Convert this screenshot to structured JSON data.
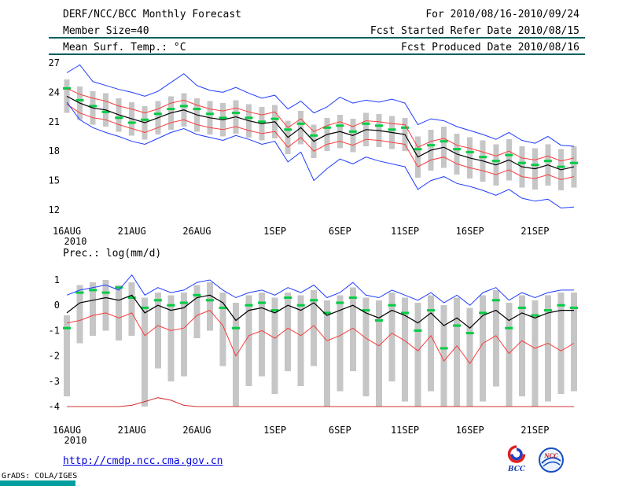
{
  "header": {
    "title": "DERF/NCC/BCC Monthly Forecast",
    "period": "For 2010/08/16-2010/09/24",
    "member_size": "Member Size=40",
    "refer_date": "Fcst Started Refer Date 2010/08/15",
    "variable": "Mean Surf. Temp.: °C",
    "produced_date": "Fcst Produced Date 2010/08/16"
  },
  "footer": {
    "url": "http://cmdp.ncc.cma.gov.cn",
    "grads_credit": "GrADS: COLA/IGES",
    "logo_bcc": "BCC",
    "logo_ncc": "NCC"
  },
  "colors": {
    "rule_teal": "#005f5f",
    "bottom_bar_teal": "#009e9e",
    "ensemble_bar_gray": "#c6c6c6",
    "marker_green": "#00cc44",
    "line_blue": "#1e3cff",
    "line_red": "#fa3c3c",
    "line_dark_red": "#d03030",
    "line_black": "#000000",
    "url_blue": "#0000dd"
  },
  "chart_data": [
    {
      "type": "line",
      "name": "mean-surface-temperature",
      "title": "Mean Surf. Temp.: °C",
      "n_days": 40,
      "year_label": "2010",
      "grid": false,
      "ylim": [
        12,
        27
      ],
      "yticks": [
        27,
        24,
        21,
        18,
        15,
        12
      ],
      "xticks": [
        {
          "day": 0,
          "label": "16AUG"
        },
        {
          "day": 5,
          "label": "21AUG"
        },
        {
          "day": 10,
          "label": "26AUG"
        },
        {
          "day": 16,
          "label": "1SEP"
        },
        {
          "day": 21,
          "label": "6SEP"
        },
        {
          "day": 26,
          "label": "11SEP"
        },
        {
          "day": 31,
          "label": "16SEP"
        },
        {
          "day": 36,
          "label": "21SEP"
        }
      ],
      "bars": {
        "name": "ensemble-spread",
        "color": "#c6c6c6",
        "width": 7,
        "high": [
          25.3,
          24.6,
          24.1,
          23.9,
          23.4,
          23.0,
          22.6,
          23.1,
          23.6,
          23.9,
          23.4,
          23.1,
          22.9,
          23.2,
          22.8,
          22.5,
          22.7,
          21.1,
          22.1,
          20.7,
          21.4,
          21.7,
          21.3,
          21.9,
          21.8,
          21.6,
          21.4,
          19.5,
          20.2,
          20.5,
          19.8,
          19.4,
          19.1,
          18.7,
          19.2,
          18.5,
          18.3,
          18.7,
          18.2,
          18.5
        ],
        "low": [
          21.9,
          21.2,
          20.7,
          20.5,
          20.0,
          19.6,
          19.2,
          19.7,
          20.2,
          20.5,
          20.0,
          19.7,
          19.5,
          19.8,
          19.4,
          19.1,
          19.3,
          17.7,
          18.7,
          17.3,
          18.0,
          18.3,
          17.9,
          18.5,
          18.4,
          18.2,
          18.0,
          15.3,
          16.0,
          16.3,
          15.6,
          15.2,
          14.9,
          14.5,
          15.0,
          14.3,
          14.1,
          14.5,
          14.0,
          14.3
        ]
      },
      "markers": {
        "name": "observation-dash",
        "color": "#00cc44",
        "values": [
          24.4,
          23.2,
          22.6,
          22.0,
          21.4,
          20.9,
          21.2,
          21.8,
          22.3,
          22.6,
          22.3,
          21.8,
          21.4,
          21.9,
          21.4,
          21.0,
          21.3,
          20.2,
          20.8,
          19.6,
          20.4,
          20.6,
          20.0,
          20.8,
          20.6,
          20.2,
          20.4,
          18.2,
          18.6,
          19.0,
          18.2,
          17.9,
          17.4,
          17.0,
          17.6,
          16.8,
          16.6,
          17.0,
          16.4,
          16.8
        ]
      },
      "series": [
        {
          "name": "ensemble-max",
          "color": "#1e3cff",
          "width": 1,
          "values": [
            26.0,
            26.8,
            25.1,
            24.7,
            24.3,
            24.0,
            23.6,
            24.1,
            25.0,
            25.9,
            24.7,
            24.2,
            24.0,
            24.5,
            23.9,
            23.4,
            23.7,
            22.3,
            23.1,
            21.9,
            22.5,
            23.5,
            22.9,
            23.2,
            23.0,
            23.3,
            22.9,
            20.7,
            21.3,
            21.1,
            20.5,
            20.1,
            19.7,
            19.2,
            19.9,
            19.1,
            18.8,
            19.5,
            18.6,
            18.5
          ]
        },
        {
          "name": "upper-quartile",
          "color": "#fa3c3c",
          "width": 1,
          "values": [
            24.4,
            23.8,
            23.4,
            23.1,
            22.6,
            22.3,
            21.9,
            22.3,
            22.9,
            23.2,
            22.7,
            22.3,
            22.1,
            22.4,
            22.0,
            21.7,
            22.0,
            20.4,
            21.3,
            20.0,
            20.6,
            21.0,
            20.5,
            21.1,
            21.0,
            20.8,
            20.7,
            18.4,
            19.0,
            19.3,
            18.6,
            18.3,
            17.9,
            17.5,
            18.0,
            17.3,
            17.1,
            17.5,
            17.0,
            17.3
          ]
        },
        {
          "name": "ensemble-mean",
          "color": "#000000",
          "width": 1.2,
          "values": [
            23.6,
            22.9,
            22.4,
            22.2,
            21.7,
            21.3,
            20.9,
            21.4,
            21.9,
            22.2,
            21.7,
            21.4,
            21.2,
            21.5,
            21.1,
            20.8,
            21.0,
            19.4,
            20.4,
            19.0,
            19.7,
            20.0,
            19.6,
            20.2,
            20.1,
            19.9,
            19.7,
            17.4,
            18.1,
            18.4,
            17.7,
            17.3,
            17.0,
            16.6,
            17.1,
            16.4,
            16.2,
            16.6,
            16.1,
            16.4
          ]
        },
        {
          "name": "lower-quartile",
          "color": "#fa3c3c",
          "width": 1,
          "values": [
            22.8,
            21.9,
            21.4,
            21.2,
            20.7,
            20.3,
            19.9,
            20.4,
            20.9,
            21.2,
            20.7,
            20.4,
            20.2,
            20.5,
            20.1,
            19.8,
            20.0,
            18.4,
            19.4,
            18.0,
            18.7,
            19.0,
            18.6,
            19.2,
            19.1,
            18.9,
            18.7,
            16.4,
            17.1,
            17.4,
            16.7,
            16.3,
            16.0,
            15.6,
            16.1,
            15.4,
            15.2,
            15.6,
            15.1,
            15.4
          ]
        },
        {
          "name": "ensemble-min",
          "color": "#1e3cff",
          "width": 1,
          "values": [
            23.0,
            21.2,
            20.4,
            19.9,
            19.5,
            19.0,
            18.7,
            19.3,
            19.9,
            20.3,
            19.7,
            19.4,
            19.1,
            19.6,
            19.2,
            18.7,
            19.0,
            16.9,
            17.9,
            15.0,
            16.2,
            17.2,
            16.7,
            17.4,
            17.0,
            16.7,
            16.4,
            14.1,
            15.0,
            15.4,
            14.7,
            14.4,
            14.0,
            13.5,
            14.1,
            13.2,
            12.9,
            13.1,
            12.2,
            12.3
          ]
        }
      ]
    },
    {
      "type": "line",
      "name": "precipitation",
      "title": "Prec.: log(mm/d)",
      "n_days": 40,
      "year_label": "2010",
      "grid": false,
      "ylim": [
        -4,
        1
      ],
      "yticks": [
        1,
        0,
        -1,
        -2,
        -3,
        -4
      ],
      "xticks": [
        {
          "day": 0,
          "label": "16AUG"
        },
        {
          "day": 5,
          "label": "21AUG"
        },
        {
          "day": 10,
          "label": "26AUG"
        },
        {
          "day": 16,
          "label": "1SEP"
        },
        {
          "day": 21,
          "label": "6SEP"
        },
        {
          "day": 26,
          "label": "11SEP"
        },
        {
          "day": 31,
          "label": "16SEP"
        },
        {
          "day": 36,
          "label": "21SEP"
        }
      ],
      "bars": {
        "name": "ensemble-spread",
        "color": "#c6c6c6",
        "width": 8,
        "high": [
          -0.4,
          0.8,
          0.9,
          1.0,
          0.8,
          0.9,
          0.3,
          0.5,
          0.4,
          0.5,
          0.8,
          0.9,
          0.5,
          0.1,
          0.4,
          0.5,
          0.3,
          0.5,
          0.4,
          0.6,
          0.2,
          0.4,
          0.7,
          0.3,
          0.2,
          0.5,
          0.3,
          0.1,
          0.4,
          0.0,
          0.3,
          -0.1,
          0.4,
          0.6,
          0.1,
          0.4,
          0.2,
          0.4,
          0.5,
          0.5
        ],
        "low": [
          -3.6,
          -1.5,
          -1.2,
          -1.0,
          -1.4,
          -1.2,
          -4.0,
          -2.5,
          -3.0,
          -2.8,
          -1.3,
          -1.0,
          -2.4,
          -4.0,
          -3.2,
          -2.8,
          -3.5,
          -2.6,
          -3.2,
          -2.4,
          -4.0,
          -3.4,
          -2.6,
          -3.6,
          -4.0,
          -3.0,
          -3.8,
          -4.0,
          -3.4,
          -4.0,
          -4.0,
          -4.0,
          -3.8,
          -3.2,
          -4.0,
          -3.6,
          -4.0,
          -3.8,
          -3.5,
          -3.4
        ]
      },
      "markers": {
        "name": "observation-dash",
        "color": "#00cc44",
        "values": [
          -0.9,
          0.5,
          0.6,
          0.5,
          0.7,
          0.3,
          -0.1,
          0.2,
          0.0,
          0.1,
          0.4,
          0.2,
          -0.1,
          -0.9,
          0.0,
          0.1,
          -0.2,
          0.3,
          0.0,
          0.2,
          -0.3,
          0.1,
          0.3,
          -0.2,
          -0.6,
          0.0,
          -0.3,
          -1.0,
          -0.2,
          -1.7,
          -0.8,
          -1.1,
          -0.3,
          0.2,
          -0.9,
          -0.1,
          -0.4,
          -0.2,
          0.0,
          -0.1
        ]
      },
      "series": [
        {
          "name": "ensemble-max",
          "color": "#1e3cff",
          "width": 1,
          "values": [
            0.4,
            0.6,
            0.7,
            0.8,
            0.6,
            1.2,
            0.4,
            0.7,
            0.5,
            0.6,
            0.9,
            1.0,
            0.6,
            0.3,
            0.5,
            0.6,
            0.4,
            0.7,
            0.5,
            0.8,
            0.3,
            0.5,
            0.9,
            0.4,
            0.3,
            0.6,
            0.4,
            0.2,
            0.5,
            0.1,
            0.4,
            0.0,
            0.5,
            0.7,
            0.2,
            0.5,
            0.3,
            0.5,
            0.6,
            0.6
          ]
        },
        {
          "name": "ensemble-mean",
          "color": "#000000",
          "width": 1.2,
          "values": [
            -0.3,
            0.1,
            0.2,
            0.3,
            0.2,
            0.4,
            -0.3,
            0.0,
            -0.2,
            -0.1,
            0.3,
            0.4,
            0.1,
            -0.6,
            -0.2,
            -0.1,
            -0.3,
            0.0,
            -0.2,
            0.1,
            -0.4,
            -0.2,
            0.0,
            -0.3,
            -0.5,
            -0.2,
            -0.4,
            -0.7,
            -0.3,
            -0.8,
            -0.5,
            -0.9,
            -0.4,
            -0.2,
            -0.6,
            -0.3,
            -0.5,
            -0.3,
            -0.2,
            -0.2
          ]
        },
        {
          "name": "lower-quartile",
          "color": "#fa3c3c",
          "width": 1,
          "values": [
            -0.7,
            -0.6,
            -0.4,
            -0.3,
            -0.5,
            -0.3,
            -1.2,
            -0.8,
            -1.0,
            -0.9,
            -0.4,
            -0.2,
            -0.8,
            -2.0,
            -1.2,
            -1.0,
            -1.3,
            -0.9,
            -1.2,
            -0.8,
            -1.4,
            -1.2,
            -0.9,
            -1.3,
            -1.6,
            -1.1,
            -1.4,
            -1.8,
            -1.2,
            -2.2,
            -1.6,
            -2.3,
            -1.5,
            -1.2,
            -1.9,
            -1.4,
            -1.7,
            -1.5,
            -1.8,
            -1.5
          ]
        },
        {
          "name": "ensemble-min",
          "color": "#d03030",
          "width": 1,
          "values": [
            -4,
            -4,
            -4,
            -4,
            -4,
            -3.95,
            -3.8,
            -3.65,
            -3.75,
            -3.95,
            -4,
            -4,
            -4,
            -4,
            -4,
            -4,
            -4,
            -4,
            -4,
            -4,
            -4,
            -4,
            -4,
            -4,
            -4,
            -4,
            -4,
            -4,
            -4,
            -4,
            -4,
            -4,
            -4,
            -4,
            -4,
            -4,
            -4,
            -4,
            -4,
            -4
          ]
        }
      ]
    }
  ]
}
